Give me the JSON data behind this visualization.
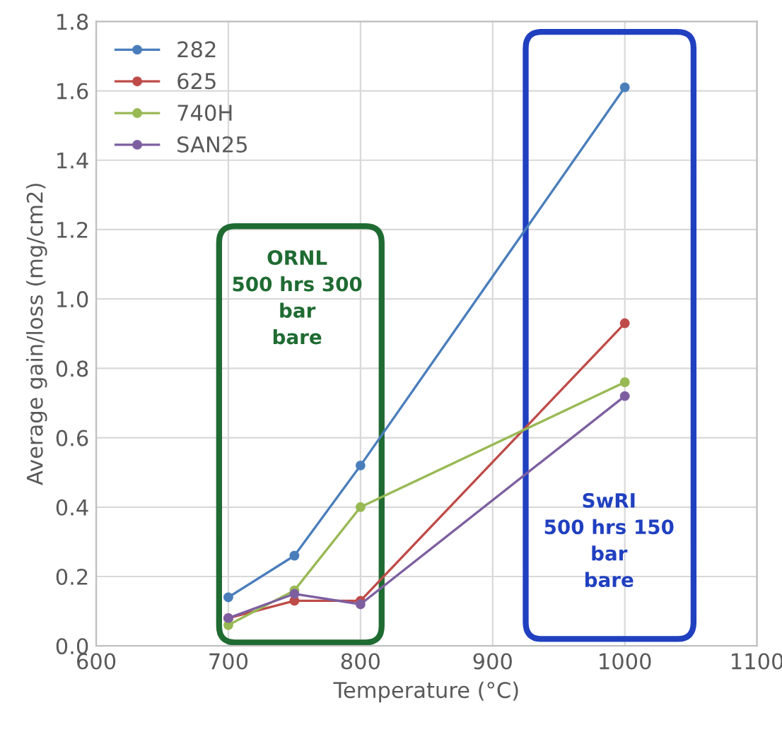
{
  "chart_data": {
    "type": "line",
    "xlabel": "Temperature (°C)",
    "ylabel": "Average gain/loss (mg/cm2)",
    "x": [
      700,
      750,
      800,
      1000
    ],
    "series": [
      {
        "name": "282",
        "color": "#4a7ebb",
        "values": [
          0.14,
          0.26,
          0.52,
          1.61
        ]
      },
      {
        "name": "625",
        "color": "#be4b48",
        "values": [
          0.08,
          0.13,
          0.13,
          0.93
        ]
      },
      {
        "name": "740H",
        "color": "#98b954",
        "values": [
          0.06,
          0.16,
          0.4,
          0.76
        ]
      },
      {
        "name": "SAN25",
        "color": "#7d5fa0",
        "values": [
          0.08,
          0.15,
          0.12,
          0.72
        ]
      }
    ],
    "annotations": [
      "ORNL\n500 hrs 300\nbar\nbare",
      "SwRI\n500 hrs 150\nbar\nbare"
    ],
    "xlim": [
      600,
      1100
    ],
    "xticks": [
      600,
      700,
      800,
      900,
      1000,
      1100
    ],
    "ylim": [
      0,
      1.8
    ],
    "yticks": [
      {
        "value": 0,
        "label": "0.0"
      },
      {
        "value": 0.2,
        "label": "0.2"
      },
      {
        "value": 0.4,
        "label": "0.4"
      },
      {
        "value": 0.6,
        "label": "0.6"
      },
      {
        "value": 0.8,
        "label": "0.8"
      },
      {
        "value": 1.0,
        "label": "1.0"
      },
      {
        "value": 1.2,
        "label": "1.2"
      },
      {
        "value": 1.4,
        "label": "1.4"
      },
      {
        "value": 1.6,
        "label": "1.6"
      },
      {
        "value": 1.8,
        "label": "1.8"
      }
    ],
    "grid": true,
    "legend": "top left",
    "marker": "circle",
    "line_style": "solid"
  }
}
